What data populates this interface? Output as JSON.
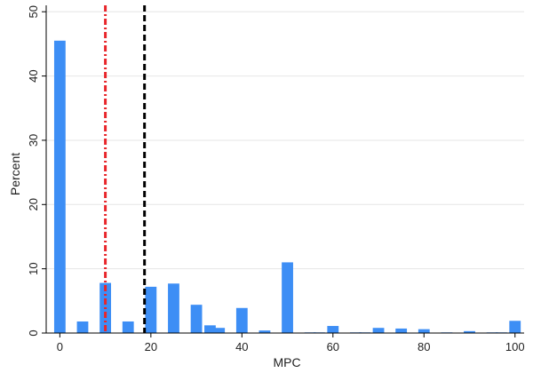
{
  "chart_data": {
    "type": "bar",
    "xlabel": "MPC",
    "ylabel": "Percent",
    "xlim": [
      -3,
      102
    ],
    "ylim": [
      0,
      51
    ],
    "xticks": [
      0,
      20,
      40,
      60,
      80,
      100
    ],
    "yticks": [
      0,
      10,
      20,
      30,
      40,
      50
    ],
    "grid": true,
    "bar_color": "#3d8ef5",
    "bar_width": 2.5,
    "x": [
      0,
      5,
      10,
      15,
      20,
      25,
      30,
      33,
      35,
      40,
      45,
      50,
      55,
      57,
      60,
      65,
      67,
      70,
      75,
      80,
      85,
      90,
      95,
      97,
      100
    ],
    "values": [
      45.5,
      1.8,
      7.8,
      1.8,
      7.2,
      7.7,
      4.4,
      1.2,
      0.8,
      3.9,
      0.4,
      11.0,
      0.1,
      0.1,
      1.1,
      0.1,
      0.1,
      0.8,
      0.7,
      0.6,
      0.1,
      0.3,
      0.1,
      0.1,
      1.9
    ],
    "reference_lines": [
      {
        "x": 10,
        "color": "#e8262b",
        "style": "dash-dot"
      },
      {
        "x": 18.6,
        "color": "#000000",
        "style": "dashed"
      }
    ]
  }
}
